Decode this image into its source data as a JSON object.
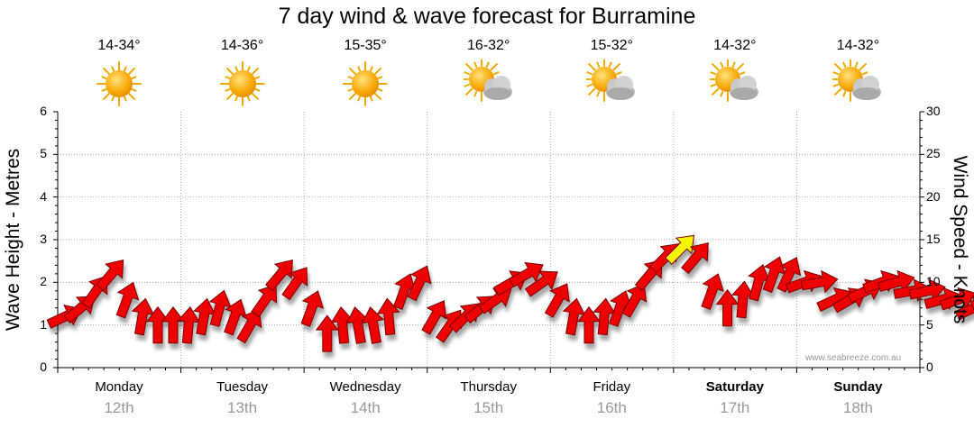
{
  "title": "7 day wind & wave forecast for Burramine",
  "days": [
    {
      "name": "Monday",
      "date": "12th",
      "temp": "14-34°",
      "icon": "sunny-icon",
      "bold": false
    },
    {
      "name": "Tuesday",
      "date": "13th",
      "temp": "14-36°",
      "icon": "sunny-icon",
      "bold": false
    },
    {
      "name": "Wednesday",
      "date": "14th",
      "temp": "15-35°",
      "icon": "sunny-icon",
      "bold": false
    },
    {
      "name": "Thursday",
      "date": "15th",
      "temp": "16-32°",
      "icon": "partly-cloudy-icon",
      "bold": false
    },
    {
      "name": "Friday",
      "date": "16th",
      "temp": "15-32°",
      "icon": "partly-cloudy-icon",
      "bold": false
    },
    {
      "name": "Saturday",
      "date": "17th",
      "temp": "14-32°",
      "icon": "partly-cloudy-icon",
      "bold": true
    },
    {
      "name": "Sunday",
      "date": "18th",
      "temp": "14-32°",
      "icon": "partly-cloudy-icon",
      "bold": true
    }
  ],
  "credit": "www.seabreeze.com.au",
  "chart_data": {
    "type": "line",
    "title": "7 day wind & wave forecast for Burramine",
    "ylabel": "Wave Height - Metres",
    "y2label": "Wind Speed - Knots",
    "ylim": [
      0,
      6
    ],
    "y2lim": [
      0,
      30
    ],
    "yticks": [
      "0",
      "1",
      "2",
      "3",
      "4",
      "5",
      "6"
    ],
    "y2ticks": [
      "0",
      "5",
      "10",
      "15",
      "20",
      "25",
      "30"
    ],
    "grid": true,
    "colors": {
      "normal": "#ee0000",
      "strong": "#f5f500",
      "outline": "#7a0000",
      "grid": "#aaaaaa"
    },
    "strong_threshold_knots": 14,
    "series": [
      {
        "name": "Wind Speed - Knots",
        "days_per_point": 0.125,
        "knots": [
          6,
          7,
          9,
          11,
          8,
          6,
          5,
          5,
          5,
          6,
          7,
          6,
          5,
          8,
          11,
          10,
          7,
          4,
          5,
          5,
          5,
          6,
          9,
          10,
          6,
          5,
          6,
          7,
          8,
          10,
          11,
          10,
          8,
          6,
          5,
          6,
          7,
          8,
          11,
          13,
          14,
          13,
          9,
          7,
          8,
          10,
          11,
          11,
          10,
          10,
          8,
          8,
          9,
          10,
          10,
          9,
          9,
          8,
          8,
          7,
          8,
          9,
          10
        ],
        "direction_deg": [
          245,
          230,
          215,
          220,
          200,
          190,
          180,
          180,
          185,
          190,
          195,
          200,
          210,
          215,
          220,
          215,
          200,
          180,
          175,
          170,
          170,
          175,
          200,
          205,
          210,
          215,
          225,
          230,
          235,
          240,
          240,
          235,
          210,
          190,
          180,
          185,
          200,
          210,
          220,
          225,
          225,
          220,
          200,
          180,
          185,
          195,
          200,
          205,
          250,
          260,
          245,
          240,
          245,
          250,
          255,
          260,
          258,
          255,
          250,
          245,
          250,
          255,
          260
        ]
      }
    ]
  }
}
